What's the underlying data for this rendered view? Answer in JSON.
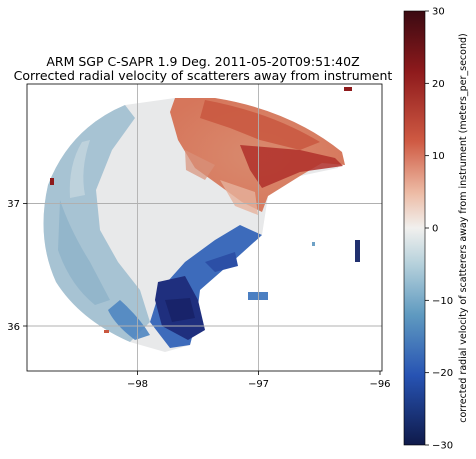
{
  "title": {
    "line1": "ARM SGP C-SAPR 1.9 Deg. 2011-05-20T09:51:40Z",
    "line2": "Corrected radial velocity of scatterers away from instrument"
  },
  "map": {
    "x_ticks": [
      {
        "value": -98,
        "label": "−98"
      },
      {
        "value": -97,
        "label": "−97"
      },
      {
        "value": -96,
        "label": "−96"
      }
    ],
    "y_ticks": [
      {
        "value": 37,
        "label": "37"
      },
      {
        "value": 36,
        "label": "36"
      }
    ],
    "grid": true
  },
  "colorbar": {
    "label": "corrected radial velocity of scatterers away from instrument (meters_per_second)",
    "range": [
      -30,
      30
    ],
    "ticks": [
      {
        "value": 30,
        "label": "30"
      },
      {
        "value": 20,
        "label": "20"
      },
      {
        "value": 10,
        "label": "10"
      },
      {
        "value": 0,
        "label": "0"
      },
      {
        "value": -10,
        "label": "−10"
      },
      {
        "value": -20,
        "label": "−20"
      },
      {
        "value": -30,
        "label": "−30"
      }
    ],
    "colors": {
      "max": "#3b0a12",
      "high": "#a8201f",
      "mid_high": "#e6967a",
      "zero": "#f1f0ee",
      "mid_low": "#86b3c9",
      "low": "#2e5fb5",
      "min": "#0f1a4a"
    }
  }
}
